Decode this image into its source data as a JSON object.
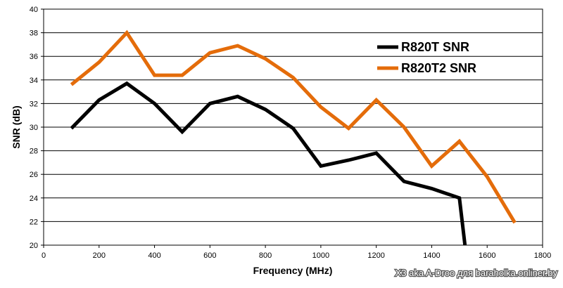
{
  "chart_data": {
    "type": "line",
    "xlabel": "Frequency (MHz)",
    "ylabel": "SNR (dB)",
    "xlim": [
      0,
      1800
    ],
    "ylim": [
      20,
      40
    ],
    "xticks": [
      0,
      200,
      400,
      600,
      800,
      1000,
      1200,
      1400,
      1600,
      1800
    ],
    "yticks": [
      20,
      22,
      24,
      26,
      28,
      30,
      32,
      34,
      36,
      38,
      40
    ],
    "grid": "horizontal",
    "legend_position": "top-right",
    "series": [
      {
        "name": "R820T SNR",
        "color": "#000000",
        "x": [
          100,
          200,
          300,
          400,
          500,
          600,
          700,
          800,
          900,
          1000,
          1100,
          1200,
          1300,
          1400,
          1500,
          1520
        ],
        "y": [
          29.9,
          32.3,
          33.7,
          32.0,
          29.6,
          32.0,
          32.6,
          31.5,
          29.9,
          26.7,
          27.2,
          27.8,
          25.4,
          24.8,
          24.0,
          20.0
        ]
      },
      {
        "name": "R820T2 SNR",
        "color": "#E46C0A",
        "x": [
          100,
          200,
          300,
          400,
          500,
          600,
          700,
          800,
          900,
          1000,
          1100,
          1200,
          1300,
          1400,
          1500,
          1600,
          1700
        ],
        "y": [
          33.6,
          35.5,
          38.0,
          34.4,
          34.4,
          36.3,
          36.9,
          35.8,
          34.2,
          31.7,
          29.9,
          32.3,
          30.0,
          26.7,
          28.8,
          25.8,
          21.9
        ]
      }
    ]
  },
  "watermark": "ХЗ aka A-Droo для baraholka.onliner.by"
}
